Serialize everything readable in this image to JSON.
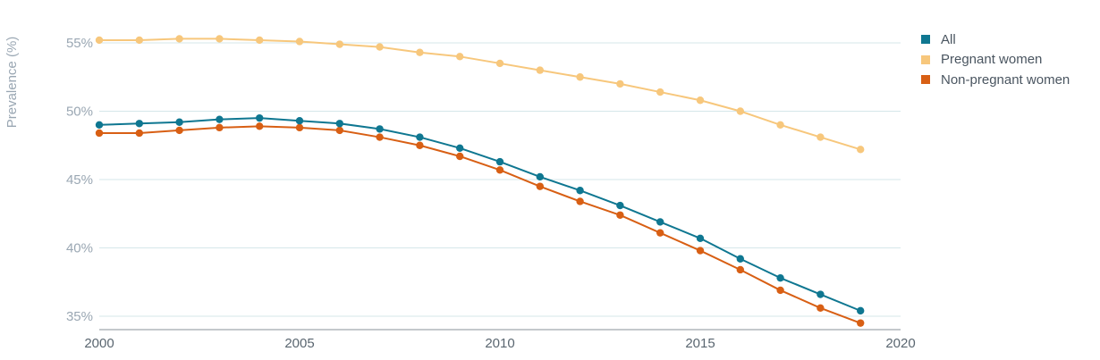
{
  "chart_data": {
    "type": "line",
    "title": "",
    "xlabel": "",
    "ylabel": "Prevalence (%)",
    "xlim": [
      2000,
      2020
    ],
    "ylim": [
      34,
      56.5
    ],
    "x_ticks": [
      2000,
      2005,
      2010,
      2015,
      2020
    ],
    "x_tick_labels": [
      "2000",
      "2005",
      "2010",
      "2015",
      "2020"
    ],
    "y_ticks": [
      35,
      40,
      45,
      50,
      55
    ],
    "y_tick_labels": [
      "35%",
      "40%",
      "45%",
      "50%",
      "55%"
    ],
    "grid": true,
    "legend_position": "top-right",
    "x": [
      2000,
      2001,
      2002,
      2003,
      2004,
      2005,
      2006,
      2007,
      2008,
      2009,
      2010,
      2011,
      2012,
      2013,
      2014,
      2015,
      2016,
      2017,
      2018,
      2019
    ],
    "series": [
      {
        "name": "All",
        "color": "#0f7791",
        "values": [
          49.0,
          49.1,
          49.2,
          49.4,
          49.5,
          49.3,
          49.1,
          48.7,
          48.1,
          47.3,
          46.3,
          45.2,
          44.2,
          43.1,
          41.9,
          40.7,
          39.2,
          37.8,
          36.6,
          35.4
        ]
      },
      {
        "name": "Pregnant women",
        "color": "#f7c77c",
        "values": [
          55.2,
          55.2,
          55.3,
          55.3,
          55.2,
          55.1,
          54.9,
          54.7,
          54.3,
          54.0,
          53.5,
          53.0,
          52.5,
          52.0,
          51.4,
          50.8,
          50.0,
          49.0,
          48.1,
          47.2
        ]
      },
      {
        "name": "Non-pregnant women",
        "color": "#d85f14",
        "values": [
          48.4,
          48.4,
          48.6,
          48.8,
          48.9,
          48.8,
          48.6,
          48.1,
          47.5,
          46.7,
          45.7,
          44.5,
          43.4,
          42.4,
          41.1,
          39.8,
          38.4,
          36.9,
          35.6,
          34.5
        ]
      }
    ]
  },
  "colors": {
    "gridline": "#d5e7ea",
    "axis": "#8a9299"
  }
}
